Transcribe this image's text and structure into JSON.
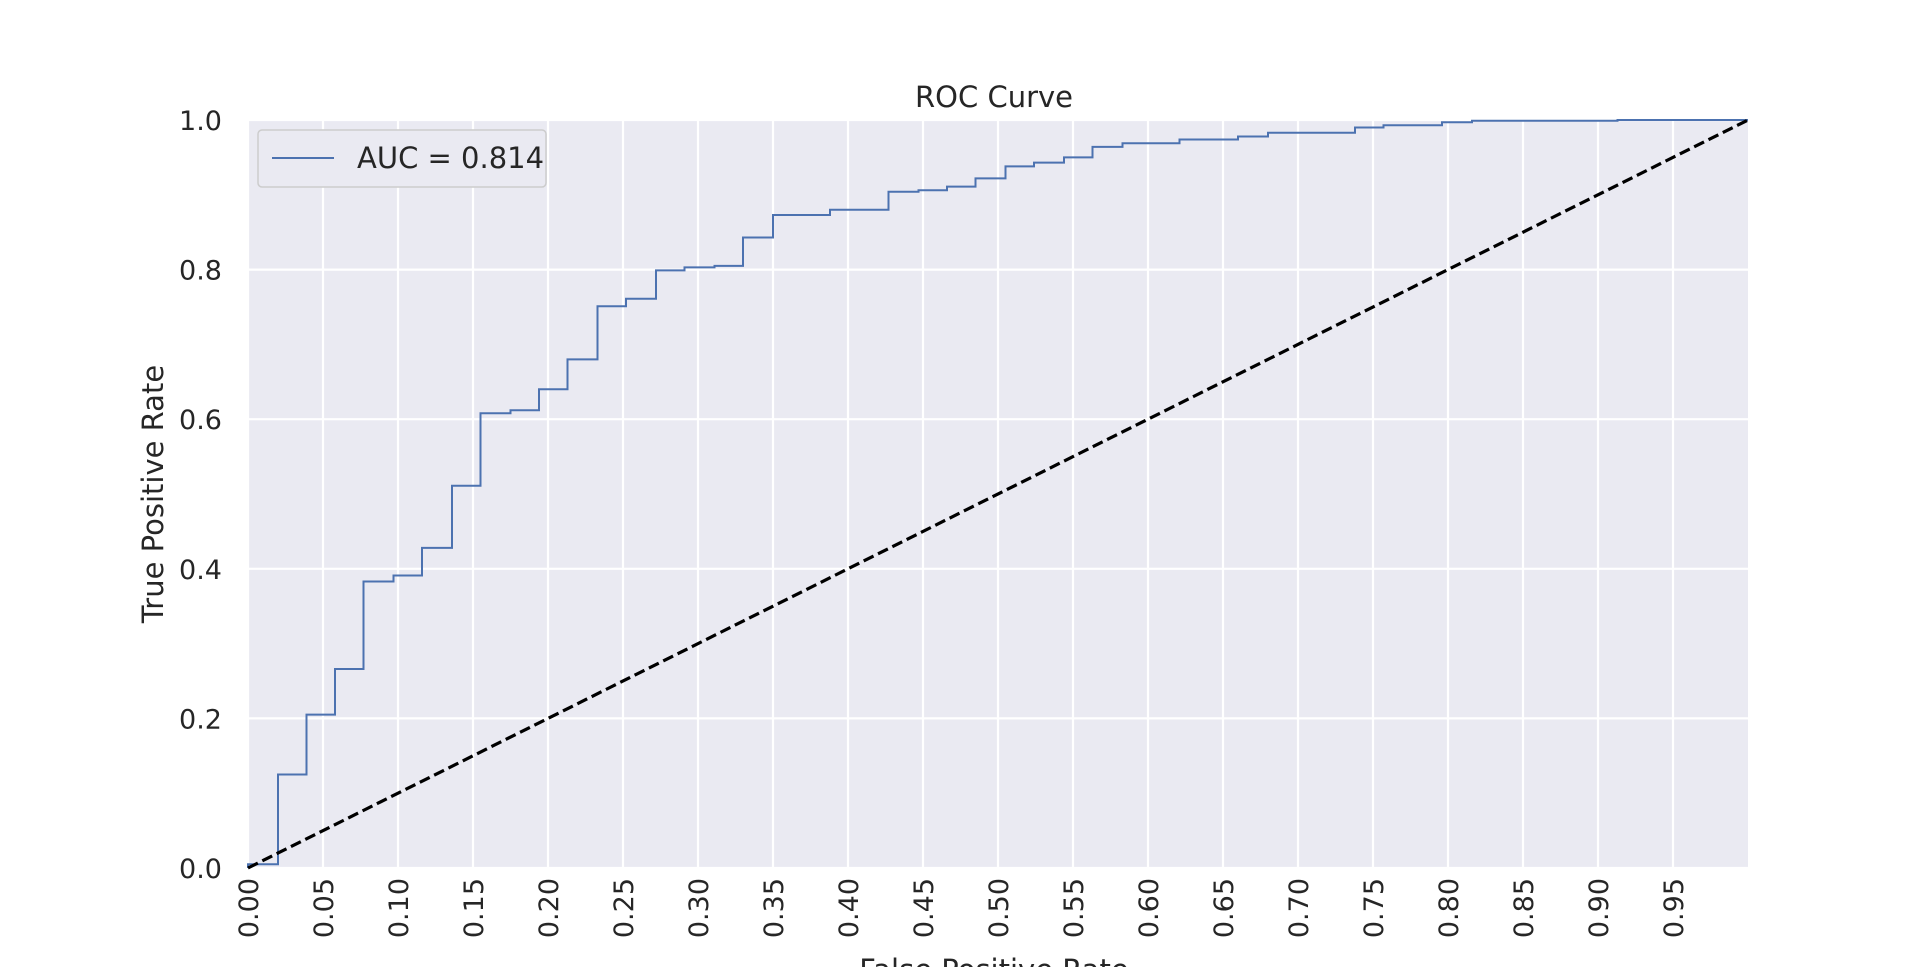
{
  "chart_data": {
    "type": "line",
    "title": "ROC Curve",
    "xlabel": "False Positive Rate",
    "ylabel": "True Positive Rate",
    "xlim": [
      0.0,
      1.0
    ],
    "ylim": [
      0.0,
      1.0
    ],
    "x_ticks": [
      "0.00",
      "0.05",
      "0.10",
      "0.15",
      "0.20",
      "0.25",
      "0.30",
      "0.35",
      "0.40",
      "0.45",
      "0.50",
      "0.55",
      "0.60",
      "0.65",
      "0.70",
      "0.75",
      "0.80",
      "0.85",
      "0.90",
      "0.95"
    ],
    "y_ticks": [
      "0.0",
      "0.2",
      "0.4",
      "0.6",
      "0.8",
      "1.0"
    ],
    "grid": true,
    "legend_position": "top-left",
    "background_color": "#eaeaf2",
    "grid_color": "#ffffff",
    "series": [
      {
        "name": "AUC = 0.814",
        "color": "#4c72b0",
        "style": "step",
        "x": [
          0.0,
          0.0,
          0.02,
          0.02,
          0.039,
          0.039,
          0.058,
          0.058,
          0.077,
          0.077,
          0.097,
          0.097,
          0.116,
          0.116,
          0.136,
          0.136,
          0.155,
          0.155,
          0.175,
          0.175,
          0.194,
          0.194,
          0.213,
          0.213,
          0.233,
          0.233,
          0.252,
          0.252,
          0.272,
          0.272,
          0.291,
          0.291,
          0.311,
          0.311,
          0.33,
          0.33,
          0.35,
          0.35,
          0.388,
          0.388,
          0.427,
          0.427,
          0.447,
          0.447,
          0.466,
          0.466,
          0.485,
          0.485,
          0.505,
          0.505,
          0.524,
          0.524,
          0.544,
          0.544,
          0.563,
          0.563,
          0.583,
          0.583,
          0.621,
          0.621,
          0.66,
          0.66,
          0.68,
          0.68,
          0.738,
          0.738,
          0.757,
          0.757,
          0.796,
          0.796,
          0.816,
          0.816,
          0.913,
          0.913,
          1.0
        ],
        "y": [
          0.0,
          0.005,
          0.005,
          0.125,
          0.125,
          0.205,
          0.205,
          0.266,
          0.266,
          0.383,
          0.383,
          0.391,
          0.391,
          0.428,
          0.428,
          0.511,
          0.511,
          0.608,
          0.608,
          0.612,
          0.612,
          0.64,
          0.64,
          0.68,
          0.68,
          0.751,
          0.751,
          0.761,
          0.761,
          0.799,
          0.799,
          0.803,
          0.803,
          0.805,
          0.805,
          0.843,
          0.843,
          0.873,
          0.873,
          0.88,
          0.88,
          0.904,
          0.904,
          0.906,
          0.906,
          0.911,
          0.911,
          0.922,
          0.922,
          0.938,
          0.938,
          0.943,
          0.943,
          0.95,
          0.95,
          0.964,
          0.964,
          0.969,
          0.969,
          0.974,
          0.974,
          0.978,
          0.978,
          0.983,
          0.983,
          0.99,
          0.99,
          0.993,
          0.993,
          0.997,
          0.997,
          0.999,
          0.999,
          1.0,
          1.0
        ]
      },
      {
        "color": "#000000",
        "style": "dashed",
        "x": [
          0.0,
          1.0
        ],
        "y": [
          0.0,
          1.0
        ]
      }
    ]
  }
}
